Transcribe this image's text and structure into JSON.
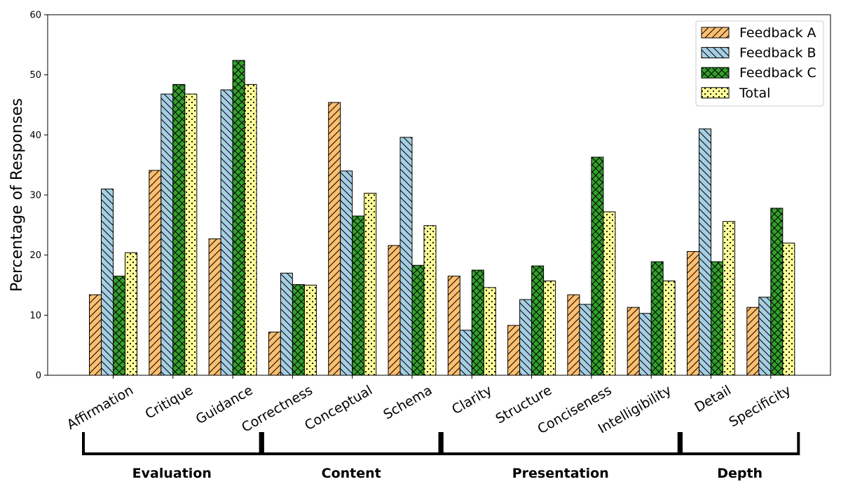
{
  "chart_data": {
    "type": "bar",
    "title": "",
    "xlabel": "",
    "ylabel": "Percentage of Responses",
    "ylim": [
      0,
      60
    ],
    "yticks": [
      "0",
      "10",
      "20",
      "30",
      "40",
      "50",
      "60"
    ],
    "categories": [
      "Affirmation",
      "Critique",
      "Guidance",
      "Correctness",
      "Conceptual",
      "Schema",
      "Clarity",
      "Structure",
      "Conciseness",
      "Intelligibility",
      "Detail",
      "Specificity"
    ],
    "series": [
      {
        "name": "Feedback A",
        "color": "#fdbf6f",
        "hatch": "diag-forward",
        "values": [
          13.4,
          34.1,
          22.7,
          7.2,
          45.4,
          21.6,
          16.5,
          8.3,
          13.4,
          11.3,
          20.6,
          11.3
        ]
      },
      {
        "name": "Feedback B",
        "color": "#a6cee3",
        "hatch": "diag-back",
        "values": [
          31.0,
          46.8,
          47.5,
          17.0,
          34.0,
          39.6,
          7.5,
          12.6,
          11.8,
          10.3,
          41.0,
          13.0
        ]
      },
      {
        "name": "Feedback C",
        "color": "#33a02c",
        "hatch": "cross",
        "values": [
          16.5,
          48.4,
          52.4,
          15.1,
          26.5,
          18.3,
          17.5,
          18.2,
          36.3,
          18.9,
          18.9,
          27.8
        ]
      },
      {
        "name": "Total",
        "color": "#ffff99",
        "hatch": "dots",
        "values": [
          20.4,
          46.8,
          48.4,
          15.0,
          30.3,
          24.9,
          14.6,
          15.7,
          27.2,
          15.7,
          25.6,
          22.0
        ]
      }
    ],
    "legend": {
      "position": "top-right"
    },
    "groups": [
      {
        "label": "Evaluation",
        "categories": [
          "Affirmation",
          "Critique",
          "Guidance"
        ]
      },
      {
        "label": "Content",
        "categories": [
          "Correctness",
          "Conceptual",
          "Schema"
        ]
      },
      {
        "label": "Presentation",
        "categories": [
          "Clarity",
          "Structure",
          "Conciseness",
          "Intelligibility"
        ]
      },
      {
        "label": "Depth",
        "categories": [
          "Detail",
          "Specificity"
        ]
      }
    ]
  }
}
